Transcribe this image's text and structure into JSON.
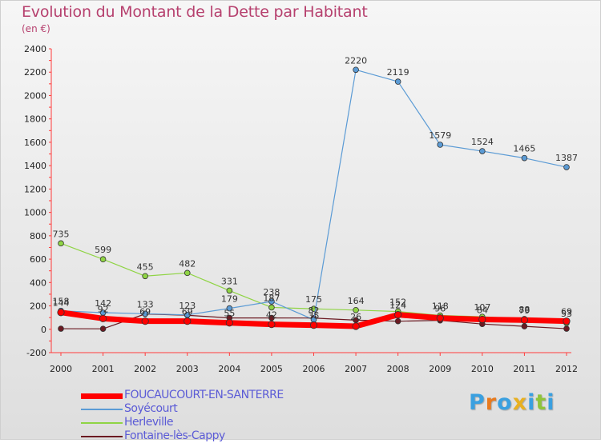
{
  "title": "Evolution du Montant de la Dette par Habitant",
  "unit_label": "(en €)",
  "logo": {
    "text": "Proxiti"
  },
  "chart_data": {
    "type": "line",
    "title": "Evolution du Montant de la Dette par Habitant",
    "subtitle": "(en €)",
    "x": [
      "2000",
      "2001",
      "2002",
      "2003",
      "2004",
      "2005",
      "2006",
      "2007",
      "2008",
      "2009",
      "2010",
      "2011",
      "2012"
    ],
    "ylim": [
      -200,
      2400
    ],
    "yticks": [
      -200,
      0,
      200,
      400,
      600,
      800,
      1000,
      1200,
      1400,
      1600,
      1800,
      2000,
      2200,
      2400
    ],
    "grid": false,
    "legend_position": "bottom-left",
    "series": [
      {
        "name": "FOUCAUCOURT-EN-SANTERRE",
        "color": "#ff0000",
        "values": [
          144,
          92,
          69,
          69,
          55,
          42,
          35,
          26,
          124,
          96,
          84,
          79,
          69
        ],
        "show_labels": true
      },
      {
        "name": "Soyécourt",
        "color": "#5b9bd5",
        "values": [
          158,
          142,
          133,
          123,
          179,
          238,
          82,
          2220,
          2119,
          1579,
          1524,
          1465,
          1387
        ],
        "show_labels": true
      },
      {
        "name": "Herleville",
        "color": "#8fd444",
        "values": [
          735,
          599,
          455,
          482,
          331,
          187,
          175,
          164,
          152,
          118,
          107,
          88,
          53
        ],
        "show_labels": true
      },
      {
        "name": "Fontaine-lès-Cappy",
        "color": "#6b1a22",
        "values": [
          5,
          4,
          131,
          120,
          97,
          97,
          96,
          78,
          69,
          76,
          45,
          25,
          5
        ],
        "show_labels": false
      }
    ]
  }
}
